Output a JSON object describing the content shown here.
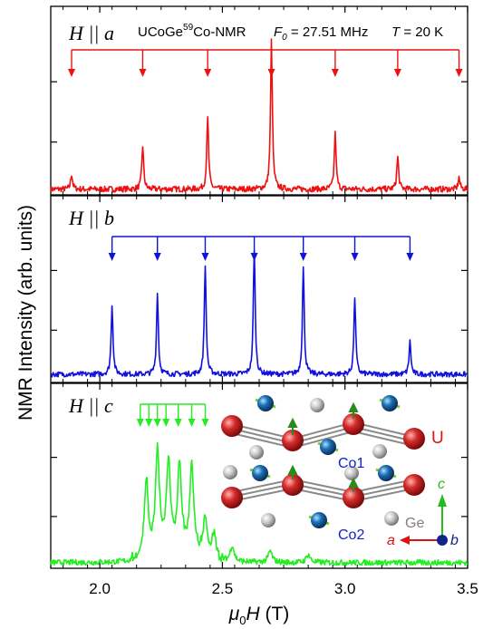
{
  "chart_data": {
    "type": "line",
    "title": "UCoGe",
    "nucleus_sup": "59",
    "nucleus": "Co-NMR",
    "freq_label": "F",
    "freq_sub": "0",
    "freq_value": " = 27.51 MHz",
    "temp_label": "T",
    "temp_value": " = 20 K",
    "ylabel": "NMR Intensity (arb. units)",
    "xlabel_mu": "μ",
    "xlabel_sub": "0",
    "xlabel_H": "H",
    "xlabel_unit": " (T)",
    "xlim": [
      1.8,
      3.5
    ],
    "xticks": [
      "2.0",
      "2.5",
      "3.0",
      "3.5"
    ],
    "xtick_values": [
      2.0,
      2.5,
      3.0,
      3.5
    ],
    "ylim": [
      0,
      1
    ],
    "panels": [
      {
        "label": "H || a",
        "color": "#ee1111",
        "comb_peaks": [
          1.885,
          2.175,
          2.44,
          2.7,
          2.96,
          3.215,
          3.465
        ],
        "peaks": [
          {
            "x": 1.885,
            "h": 0.09
          },
          {
            "x": 2.175,
            "h": 0.26
          },
          {
            "x": 2.44,
            "h": 0.42
          },
          {
            "x": 2.7,
            "h": 0.88
          },
          {
            "x": 2.96,
            "h": 0.33
          },
          {
            "x": 3.215,
            "h": 0.19
          },
          {
            "x": 3.465,
            "h": 0.07
          }
        ]
      },
      {
        "label": "H || b",
        "color": "#1111dd",
        "comb_peaks": [
          2.05,
          2.235,
          2.43,
          2.63,
          2.83,
          3.04,
          3.265
        ],
        "peaks": [
          {
            "x": 2.05,
            "h": 0.47
          },
          {
            "x": 2.235,
            "h": 0.54
          },
          {
            "x": 2.43,
            "h": 0.74
          },
          {
            "x": 2.63,
            "h": 0.84
          },
          {
            "x": 2.83,
            "h": 0.71
          },
          {
            "x": 3.04,
            "h": 0.52
          },
          {
            "x": 3.265,
            "h": 0.22
          }
        ]
      },
      {
        "label": "H || c",
        "color": "#22ee22",
        "comb_peaks": [
          2.165,
          2.2,
          2.235,
          2.27,
          2.32,
          2.375,
          2.43
        ],
        "peaks": [
          {
            "x": 2.19,
            "h": 0.46
          },
          {
            "x": 2.235,
            "h": 0.63
          },
          {
            "x": 2.28,
            "h": 0.55
          },
          {
            "x": 2.325,
            "h": 0.52
          },
          {
            "x": 2.375,
            "h": 0.56
          },
          {
            "x": 2.43,
            "h": 0.24
          },
          {
            "x": 2.465,
            "h": 0.16
          },
          {
            "x": 2.54,
            "h": 0.1
          },
          {
            "x": 2.695,
            "h": 0.07
          },
          {
            "x": 2.85,
            "h": 0.05
          }
        ]
      }
    ],
    "structure_labels": {
      "u": "U",
      "co1": "Co1",
      "co2": "Co2",
      "ge": "Ge",
      "axis_a": "a",
      "axis_b": "b",
      "axis_c": "c"
    },
    "colors": {
      "u_atom": "#d42a2a",
      "co_atom": "#1b6fb5",
      "ge_atom": "#c8c8c8",
      "moment": "#77cc22",
      "arrow_a": "#dd1111",
      "arrow_c": "#22bb22",
      "arrow_b": "#112288"
    }
  }
}
